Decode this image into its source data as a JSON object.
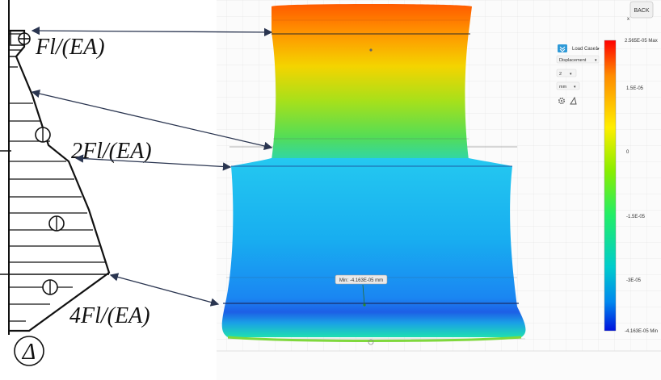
{
  "diagram": {
    "labels": {
      "first": "Fl/(EA)",
      "second": "2Fl/(EA)",
      "third": "4Fl/(EA)",
      "symbol": "Δ"
    }
  },
  "viewer": {
    "back_label": "BACK",
    "panel": {
      "load_case": "Load Case1",
      "result_type": "Displacement",
      "component": "2",
      "unit": "mm"
    },
    "probe_label": "Min: -4.163E-05 mm",
    "legend": {
      "max": "2.565E-05 Max",
      "ticks": [
        "1.5E-05",
        "0",
        "-1.5E-05",
        "-3E-05"
      ],
      "min": "-4.163E-05 Min"
    },
    "colors": {
      "max": "#ff2200",
      "mid": "#66dd22",
      "min": "#0011dd"
    }
  }
}
